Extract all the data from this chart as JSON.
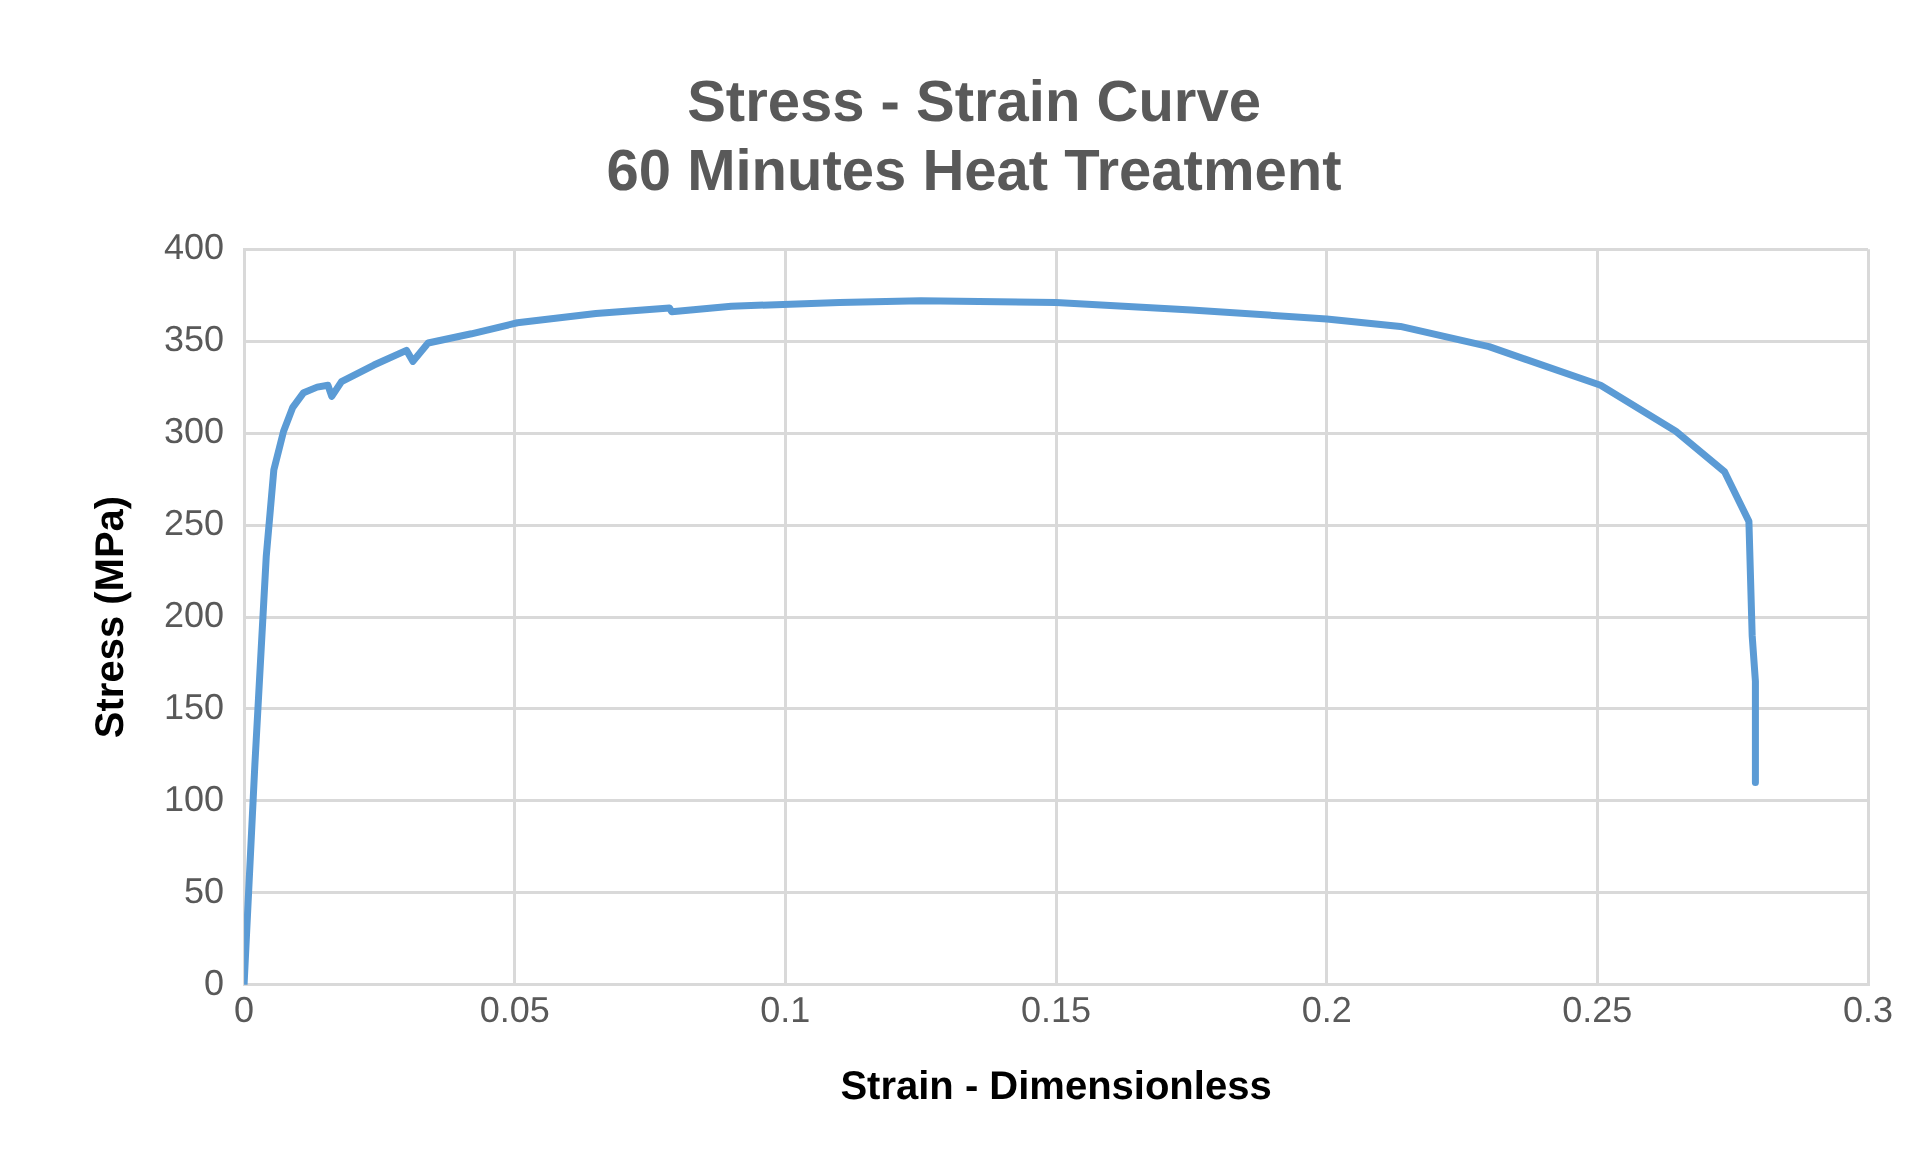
{
  "chart_data": {
    "type": "line",
    "title": [
      "Stress - Strain Curve",
      "60 Minutes Heat Treatment"
    ],
    "xlabel": "Strain - Dimensionless",
    "ylabel": "Stress (MPa)",
    "xlim": [
      0,
      0.3
    ],
    "xticks": [
      0,
      0.05,
      0.1,
      0.15,
      0.2,
      0.25,
      0.3
    ],
    "ylim": [
      0,
      400
    ],
    "yticks": [
      0,
      50,
      100,
      150,
      200,
      250,
      300,
      350,
      400
    ],
    "grid": true,
    "legend": false,
    "marker": "none",
    "line_style": "solid",
    "series": [
      {
        "color": "#5b9bd5",
        "x": [
          0,
          0.002,
          0.0041,
          0.0055,
          0.0073,
          0.009,
          0.011,
          0.0135,
          0.0155,
          0.0162,
          0.018,
          0.024,
          0.03,
          0.0312,
          0.034,
          0.042,
          0.0505,
          0.065,
          0.0786,
          0.079,
          0.09,
          0.11,
          0.125,
          0.15,
          0.175,
          0.2,
          0.2136,
          0.23,
          0.2506,
          0.2645,
          0.2735,
          0.278,
          0.2786,
          0.2792,
          0.2792
        ],
        "values": [
          0,
          120,
          233,
          280,
          301,
          314,
          322,
          325,
          326,
          320,
          328,
          337,
          345,
          339,
          349,
          354,
          360,
          365,
          368,
          366,
          369,
          371,
          372,
          371,
          367,
          362,
          358,
          347,
          326,
          301,
          279,
          252,
          190,
          165,
          110
        ]
      }
    ]
  }
}
